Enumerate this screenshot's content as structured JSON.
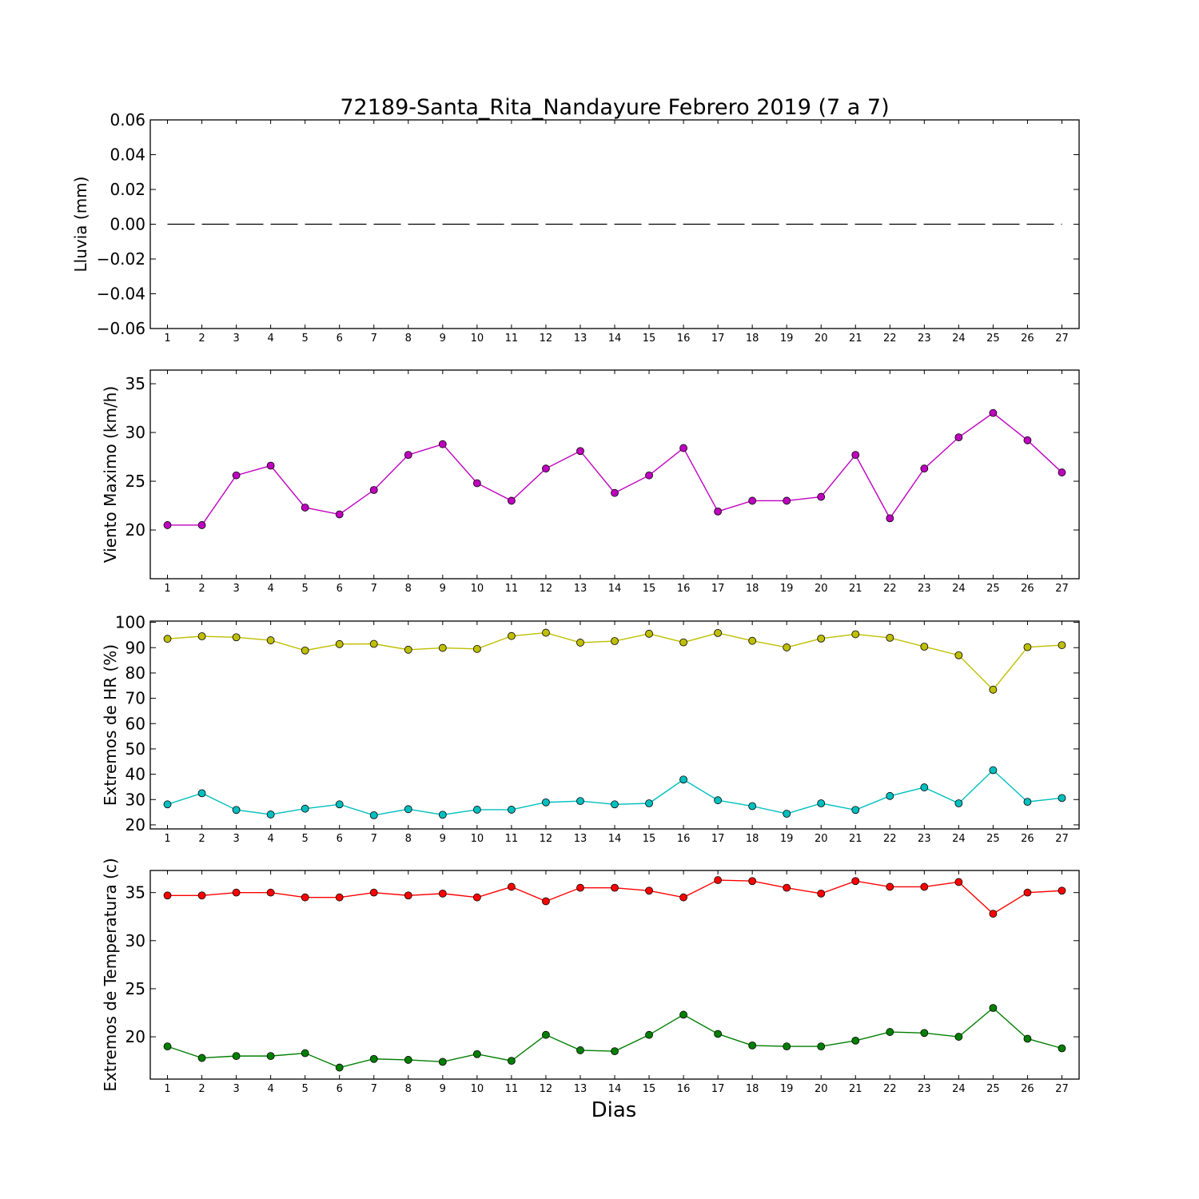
{
  "figure": {
    "title": "72189-Santa_Rita_Nandayure Febrero 2019  (7 a 7)",
    "xlabel": "Dias"
  },
  "chart_data": [
    {
      "type": "line",
      "ylabel": "Lluvia (mm)",
      "x": [
        1,
        2,
        3,
        4,
        5,
        6,
        7,
        8,
        9,
        10,
        11,
        12,
        13,
        14,
        15,
        16,
        17,
        18,
        19,
        20,
        21,
        22,
        23,
        24,
        25,
        26,
        27
      ],
      "xlim": [
        0.5,
        27.5
      ],
      "ylim": [
        -0.06,
        0.06
      ],
      "yticks": [
        -0.06,
        -0.04,
        -0.02,
        0.0,
        0.02,
        0.04,
        0.06
      ],
      "ytick_labels": [
        "−0.06",
        "−0.04",
        "−0.02",
        "0.00",
        "0.02",
        "0.04",
        "0.06"
      ],
      "grid": false,
      "series": [
        {
          "color": "#000000",
          "dashed": true,
          "markers": false,
          "values": [
            0,
            0,
            0,
            0,
            0,
            0,
            0,
            0,
            0,
            0,
            0,
            0,
            0,
            0,
            0,
            0,
            0,
            0,
            0,
            0,
            0,
            0,
            0,
            0,
            0,
            0,
            0
          ]
        }
      ]
    },
    {
      "type": "line",
      "ylabel": "Viento Maximo (km/h)",
      "x": [
        1,
        2,
        3,
        4,
        5,
        6,
        7,
        8,
        9,
        10,
        11,
        12,
        13,
        14,
        15,
        16,
        17,
        18,
        19,
        20,
        21,
        22,
        23,
        24,
        25,
        26,
        27
      ],
      "xlim": [
        0.5,
        27.5
      ],
      "ylim": [
        15.0,
        36.4
      ],
      "yticks": [
        20,
        25,
        30,
        35
      ],
      "ytick_labels": [
        "20",
        "25",
        "30",
        "35"
      ],
      "grid": false,
      "series": [
        {
          "color": "#bf00bf",
          "dashed": false,
          "markers": true,
          "values": [
            20.5,
            20.5,
            25.6,
            26.6,
            22.3,
            21.6,
            24.1,
            27.7,
            28.8,
            24.8,
            23.0,
            26.3,
            28.1,
            23.8,
            25.6,
            28.4,
            21.9,
            23.0,
            23.0,
            23.4,
            27.7,
            21.2,
            26.3,
            29.5,
            32.0,
            29.2,
            25.9
          ]
        }
      ]
    },
    {
      "type": "line",
      "ylabel": "Extremos de HR (%)",
      "x": [
        1,
        2,
        3,
        4,
        5,
        6,
        7,
        8,
        9,
        10,
        11,
        12,
        13,
        14,
        15,
        16,
        17,
        18,
        19,
        20,
        21,
        22,
        23,
        24,
        25,
        26,
        27
      ],
      "xlim": [
        0.5,
        27.5
      ],
      "ylim": [
        18.4,
        100.5
      ],
      "yticks": [
        20,
        30,
        40,
        50,
        60,
        70,
        80,
        90,
        100
      ],
      "ytick_labels": [
        "20",
        "30",
        "40",
        "50",
        "60",
        "70",
        "80",
        "90",
        "100"
      ],
      "grid": false,
      "series": [
        {
          "color": "#bfbf00",
          "dashed": false,
          "markers": true,
          "values": [
            93.5,
            94.5,
            94.1,
            92.9,
            88.9,
            91.4,
            91.5,
            89.2,
            89.9,
            89.5,
            94.6,
            95.9,
            92.0,
            92.6,
            95.5,
            92.1,
            95.8,
            92.7,
            90.1,
            93.6,
            95.3,
            93.9,
            90.4,
            87.0,
            73.4,
            90.2,
            91.0
          ]
        },
        {
          "color": "#00bfbf",
          "dashed": false,
          "markers": true,
          "values": [
            28.1,
            32.5,
            25.9,
            24.1,
            26.4,
            28.1,
            23.8,
            26.2,
            24.0,
            26.0,
            26.0,
            28.9,
            29.4,
            28.1,
            28.5,
            37.9,
            29.7,
            27.4,
            24.4,
            28.5,
            25.9,
            31.4,
            34.8,
            28.5,
            41.6,
            29.1,
            30.6
          ]
        }
      ]
    },
    {
      "type": "line",
      "ylabel": "Extremos de Temperatura (c)",
      "x": [
        1,
        2,
        3,
        4,
        5,
        6,
        7,
        8,
        9,
        10,
        11,
        12,
        13,
        14,
        15,
        16,
        17,
        18,
        19,
        20,
        21,
        22,
        23,
        24,
        25,
        26,
        27
      ],
      "xlim": [
        0.5,
        27.5
      ],
      "ylim": [
        15.6,
        37.3
      ],
      "yticks": [
        20,
        25,
        30,
        35
      ],
      "ytick_labels": [
        "20",
        "25",
        "30",
        "35"
      ],
      "grid": false,
      "series": [
        {
          "color": "#ff0000",
          "dashed": false,
          "markers": true,
          "values": [
            34.7,
            34.7,
            35.0,
            35.0,
            34.5,
            34.5,
            35.0,
            34.7,
            34.9,
            34.5,
            35.6,
            34.1,
            35.5,
            35.5,
            35.2,
            34.5,
            36.3,
            36.2,
            35.5,
            34.9,
            36.2,
            35.6,
            35.6,
            36.1,
            32.8,
            35.0,
            35.2
          ]
        },
        {
          "color": "#007f00",
          "dashed": false,
          "markers": true,
          "values": [
            19.0,
            17.8,
            18.0,
            18.0,
            18.3,
            16.8,
            17.7,
            17.6,
            17.4,
            18.2,
            17.5,
            20.2,
            18.6,
            18.5,
            20.2,
            22.3,
            20.3,
            19.1,
            19.0,
            19.0,
            19.6,
            20.5,
            20.4,
            20.0,
            23.0,
            19.8,
            18.8
          ]
        }
      ]
    }
  ]
}
